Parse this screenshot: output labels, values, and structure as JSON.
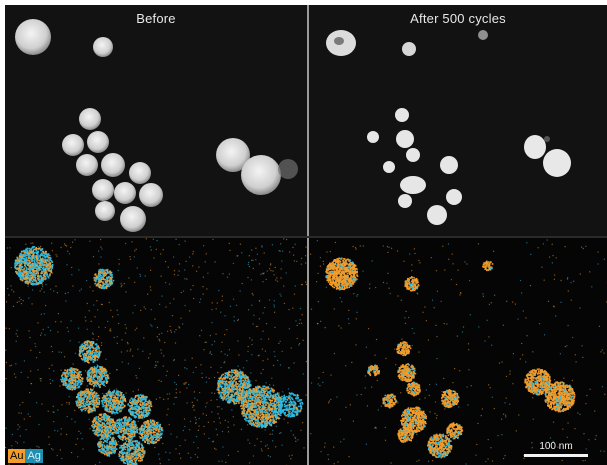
{
  "panels": {
    "before_title": "Before",
    "after_title": "After 500 cycles"
  },
  "legend": {
    "au": "Au",
    "ag": "Ag"
  },
  "scale_bar": {
    "label": "100 nm"
  },
  "colors": {
    "au": "#f39c2a",
    "ag": "#2bb8e0",
    "background": "#0b0b0b"
  }
}
